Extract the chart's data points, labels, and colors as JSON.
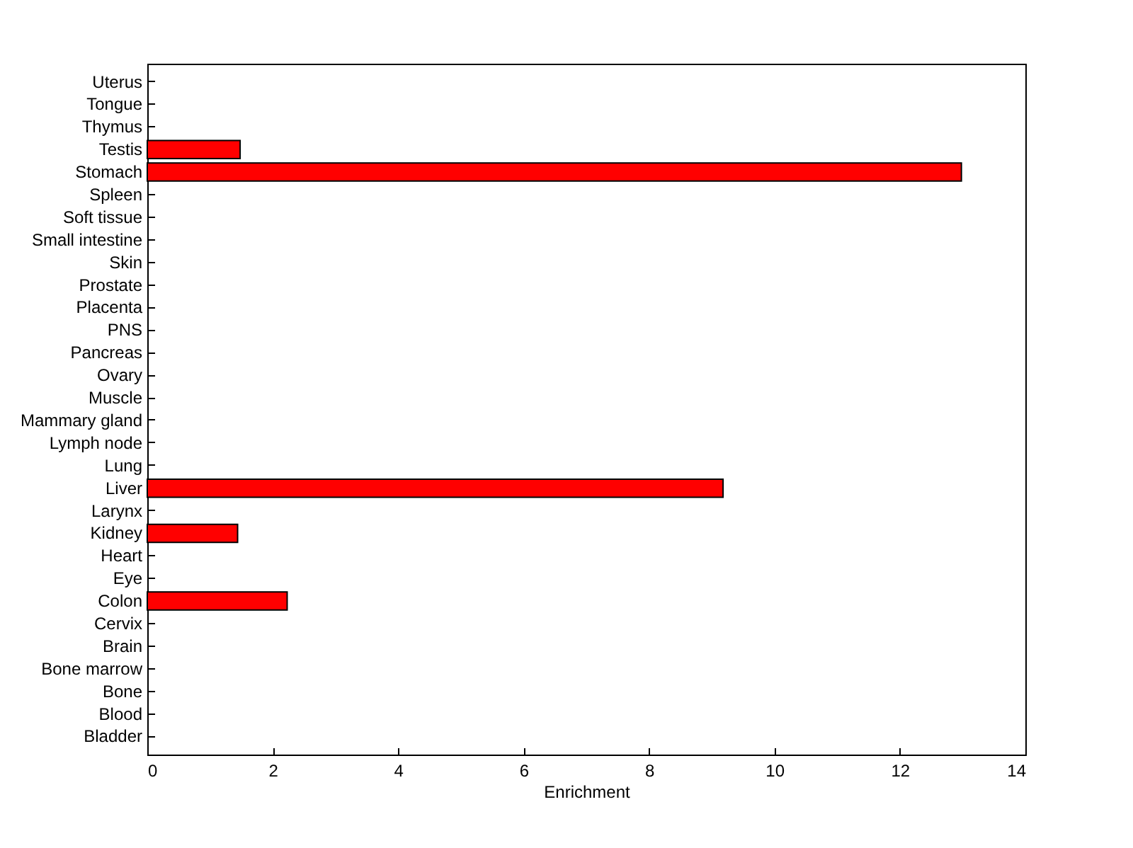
{
  "chart_data": {
    "type": "bar",
    "orientation": "horizontal",
    "xlabel": "Enrichment",
    "categories": [
      "Uterus",
      "Tongue",
      "Thymus",
      "Testis",
      "Stomach",
      "Spleen",
      "Soft tissue",
      "Small intestine",
      "Skin",
      "Prostate",
      "Placenta",
      "PNS",
      "Pancreas",
      "Ovary",
      "Muscle",
      "Mammary gland",
      "Lymph node",
      "Lung",
      "Liver",
      "Larynx",
      "Kidney",
      "Heart",
      "Eye",
      "Colon",
      "Cervix",
      "Brain",
      "Bone marrow",
      "Bone",
      "Blood",
      "Bladder"
    ],
    "values": [
      null,
      null,
      null,
      1.48,
      12.98,
      null,
      null,
      null,
      null,
      null,
      null,
      null,
      null,
      null,
      null,
      null,
      null,
      null,
      9.18,
      null,
      1.44,
      null,
      null,
      2.23,
      null,
      null,
      null,
      null,
      null,
      null
    ],
    "color": "#ff0000",
    "xlim": [
      0,
      14
    ],
    "xticks": [
      0,
      2,
      4,
      6,
      8,
      10,
      12,
      14
    ],
    "grid": false
  }
}
